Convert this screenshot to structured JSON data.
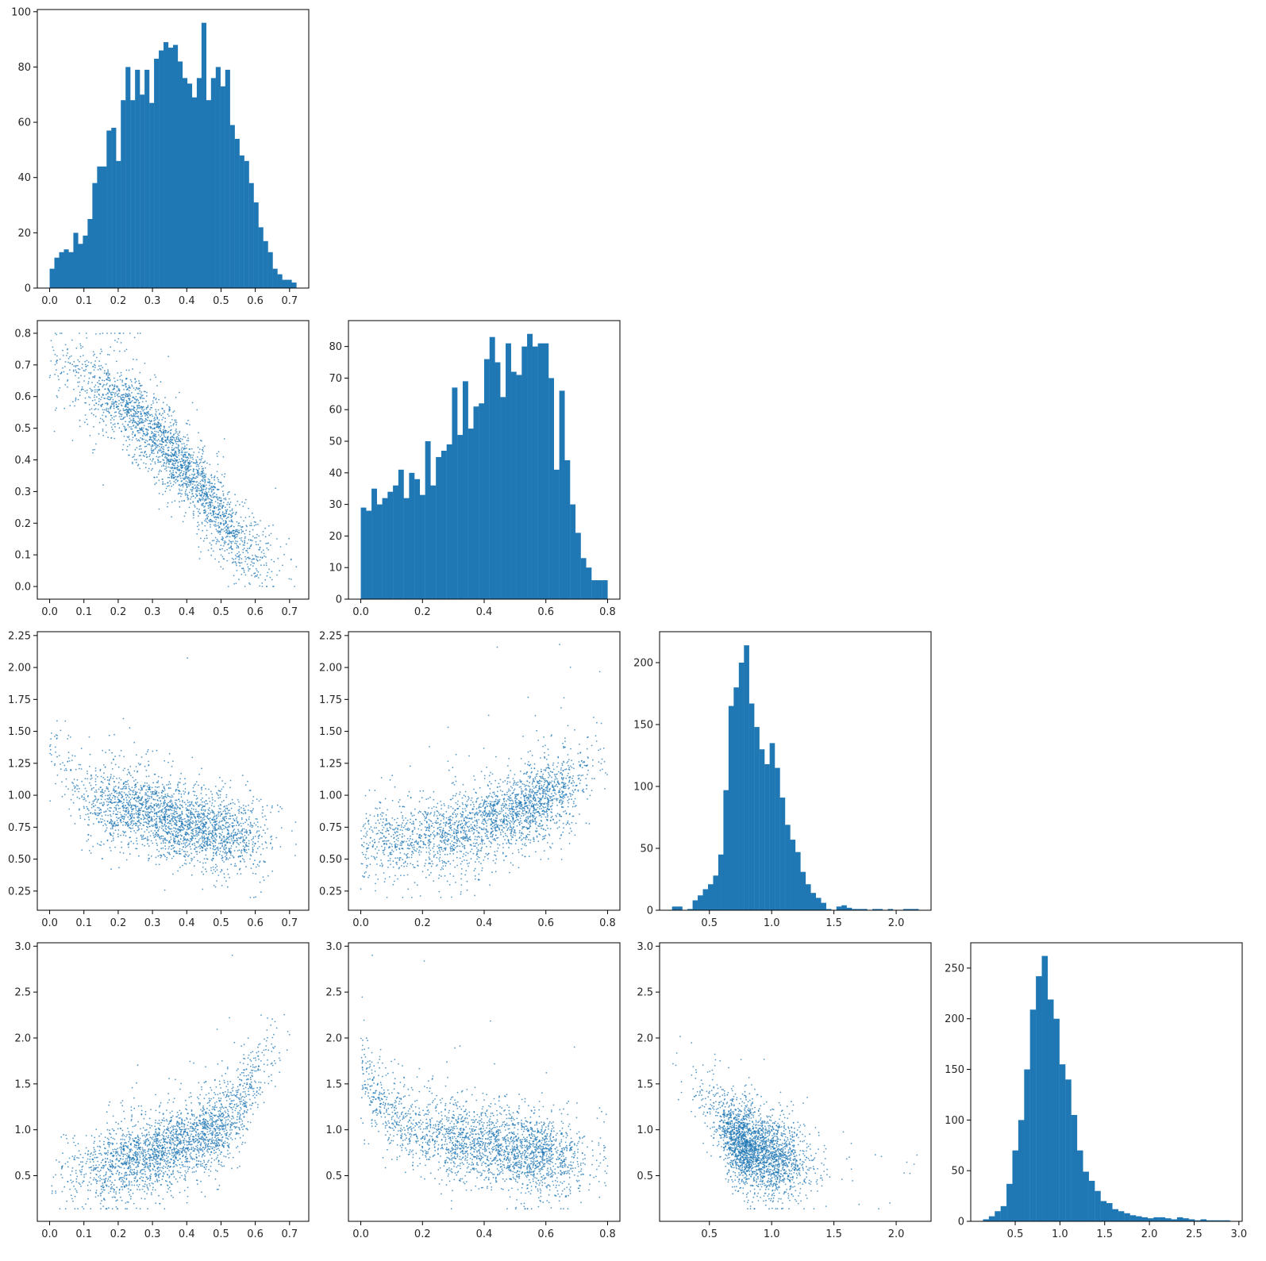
{
  "colors": {
    "bar": "#1f77b4",
    "point": "#1f77b4",
    "axis": "#000000",
    "text": "#262626"
  },
  "figure_layout": "corner-plot-4x4-lower-triangle",
  "chart_data": [
    {
      "id": "hist-0",
      "type": "bar",
      "panel": [
        0,
        0
      ],
      "bin_edges_range": [
        0.0,
        0.72
      ],
      "counts": [
        7,
        11,
        13,
        14,
        13,
        20,
        16,
        19,
        25,
        38,
        44,
        44,
        57,
        58,
        46,
        68,
        80,
        68,
        79,
        70,
        79,
        67,
        83,
        86,
        89,
        87,
        88,
        82,
        76,
        74,
        69,
        76,
        96,
        68,
        76,
        80,
        73,
        79,
        59,
        54,
        48,
        46,
        38,
        31,
        22,
        17,
        13,
        7,
        5,
        3,
        3,
        2
      ],
      "xlim": [
        -0.036,
        0.756
      ],
      "ylim": [
        0,
        100.8
      ],
      "xticks": [
        0.0,
        0.1,
        0.2,
        0.3,
        0.4,
        0.5,
        0.6,
        0.7
      ],
      "xtick_labels": [
        "0.0",
        "0.1",
        "0.2",
        "0.3",
        "0.4",
        "0.5",
        "0.6",
        "0.7"
      ],
      "yticks": [
        0,
        20,
        40,
        60,
        80,
        100
      ],
      "ytick_labels": [
        "0",
        "20",
        "40",
        "60",
        "80",
        "100"
      ]
    },
    {
      "id": "hist-1",
      "type": "bar",
      "panel": [
        1,
        1
      ],
      "bin_edges_range": [
        0.0,
        0.8
      ],
      "counts": [
        29,
        28,
        35,
        30,
        32,
        34,
        36,
        41,
        32,
        40,
        38,
        33,
        50,
        36,
        45,
        47,
        49,
        67,
        52,
        69,
        54,
        61,
        62,
        76,
        83,
        75,
        64,
        81,
        72,
        71,
        80,
        84,
        80,
        81,
        81,
        70,
        41,
        66,
        44,
        30,
        21,
        13,
        10,
        6,
        6,
        6
      ],
      "xlim": [
        -0.04,
        0.84
      ],
      "ylim": [
        0,
        88.2
      ],
      "xticks": [
        0.0,
        0.2,
        0.4,
        0.6,
        0.8
      ],
      "xtick_labels": [
        "0.0",
        "0.2",
        "0.4",
        "0.6",
        "0.8"
      ],
      "yticks": [
        0,
        10,
        20,
        30,
        40,
        50,
        60,
        70,
        80
      ],
      "ytick_labels": [
        "0",
        "10",
        "20",
        "30",
        "40",
        "50",
        "60",
        "70",
        "80"
      ]
    },
    {
      "id": "hist-2",
      "type": "bar",
      "panel": [
        2,
        2
      ],
      "bin_edges_range": [
        0.2,
        2.18
      ],
      "counts": [
        3,
        3,
        0,
        1,
        8,
        12,
        17,
        21,
        28,
        45,
        97,
        165,
        180,
        200,
        214,
        167,
        148,
        130,
        118,
        135,
        115,
        91,
        69,
        57,
        47,
        31,
        21,
        14,
        10,
        6,
        1,
        0,
        3,
        4,
        2,
        1,
        1,
        1,
        0,
        1,
        1,
        0,
        1,
        0,
        0,
        1,
        1,
        1
      ],
      "xlim": [
        0.1,
        2.28
      ],
      "ylim": [
        0,
        225
      ],
      "xticks": [
        0.5,
        1.0,
        1.5,
        2.0
      ],
      "xtick_labels": [
        "0.5",
        "1.0",
        "1.5",
        "2.0"
      ],
      "yticks": [
        0,
        50,
        100,
        150,
        200
      ],
      "ytick_labels": [
        "0",
        "50",
        "100",
        "150",
        "200"
      ]
    },
    {
      "id": "hist-3",
      "type": "bar",
      "panel": [
        3,
        3
      ],
      "bin_edges_range": [
        0.14,
        2.9
      ],
      "counts": [
        2,
        5,
        10,
        15,
        37,
        70,
        100,
        150,
        209,
        242,
        262,
        219,
        200,
        155,
        140,
        105,
        70,
        49,
        40,
        30,
        20,
        18,
        12,
        10,
        8,
        6,
        5,
        4,
        3,
        4,
        4,
        3,
        2,
        4,
        3,
        2,
        1,
        2,
        1,
        1,
        1,
        1
      ],
      "xlim": [
        0.003,
        3.037
      ],
      "ylim": [
        0,
        275
      ],
      "xticks": [
        0.5,
        1.0,
        1.5,
        2.0,
        2.5,
        3.0
      ],
      "xtick_labels": [
        "0.5",
        "1.0",
        "1.5",
        "2.0",
        "2.5",
        "3.0"
      ],
      "yticks": [
        0,
        50,
        100,
        150,
        200,
        250
      ],
      "ytick_labels": [
        "0",
        "50",
        "100",
        "150",
        "200",
        "250"
      ]
    },
    {
      "id": "scatter-1-0",
      "type": "scatter",
      "panel": [
        1,
        0
      ],
      "point_count": 2500,
      "x_range": [
        0.0,
        0.72
      ],
      "y_range": [
        0.0,
        0.8
      ],
      "trend": "negative",
      "relationship_x_to_y": {
        "x": [
          0.05,
          0.15,
          0.25,
          0.35,
          0.45,
          0.55,
          0.65
        ],
        "y_median": [
          0.67,
          0.62,
          0.54,
          0.43,
          0.3,
          0.14,
          0.08
        ]
      },
      "xlim": [
        -0.036,
        0.756
      ],
      "ylim": [
        -0.04,
        0.84
      ],
      "xticks": [
        0.0,
        0.1,
        0.2,
        0.3,
        0.4,
        0.5,
        0.6,
        0.7
      ],
      "xtick_labels": [
        "0.0",
        "0.1",
        "0.2",
        "0.3",
        "0.4",
        "0.5",
        "0.6",
        "0.7"
      ],
      "yticks": [
        0.0,
        0.1,
        0.2,
        0.3,
        0.4,
        0.5,
        0.6,
        0.7,
        0.8
      ],
      "ytick_labels": [
        "0.0",
        "0.1",
        "0.2",
        "0.3",
        "0.4",
        "0.5",
        "0.6",
        "0.7",
        "0.8"
      ]
    },
    {
      "id": "scatter-2-0",
      "type": "scatter",
      "panel": [
        2,
        0
      ],
      "point_count": 2500,
      "x_range": [
        0.0,
        0.72
      ],
      "y_range": [
        0.2,
        2.18
      ],
      "trend": "negative",
      "relationship_x_to_y": {
        "x": [
          0.02,
          0.1,
          0.2,
          0.3,
          0.4,
          0.5,
          0.6,
          0.7
        ],
        "y_median": [
          1.3,
          1.0,
          0.92,
          0.86,
          0.78,
          0.7,
          0.68,
          0.72
        ]
      },
      "xlim": [
        -0.036,
        0.756
      ],
      "ylim": [
        0.1,
        2.28
      ],
      "xticks": [
        0.0,
        0.1,
        0.2,
        0.3,
        0.4,
        0.5,
        0.6,
        0.7
      ],
      "xtick_labels": [
        "0.0",
        "0.1",
        "0.2",
        "0.3",
        "0.4",
        "0.5",
        "0.6",
        "0.7"
      ],
      "yticks": [
        0.25,
        0.5,
        0.75,
        1.0,
        1.25,
        1.5,
        1.75,
        2.0,
        2.25
      ],
      "ytick_labels": [
        "0.25",
        "0.50",
        "0.75",
        "1.00",
        "1.25",
        "1.50",
        "1.75",
        "2.00",
        "2.25"
      ]
    },
    {
      "id": "scatter-2-1",
      "type": "scatter",
      "panel": [
        2,
        1
      ],
      "point_count": 2500,
      "x_range": [
        0.0,
        0.8
      ],
      "y_range": [
        0.2,
        2.18
      ],
      "trend": "positive",
      "relationship_x_to_y": {
        "x": [
          0.0,
          0.1,
          0.2,
          0.3,
          0.4,
          0.5,
          0.6,
          0.7,
          0.78
        ],
        "y_median": [
          0.62,
          0.64,
          0.66,
          0.7,
          0.76,
          0.85,
          0.98,
          1.1,
          1.3
        ]
      },
      "xlim": [
        -0.04,
        0.84
      ],
      "ylim": [
        0.1,
        2.28
      ],
      "xticks": [
        0.0,
        0.2,
        0.4,
        0.6,
        0.8
      ],
      "xtick_labels": [
        "0.0",
        "0.2",
        "0.4",
        "0.6",
        "0.8"
      ],
      "yticks": [
        0.25,
        0.5,
        0.75,
        1.0,
        1.25,
        1.5,
        1.75,
        2.0,
        2.25
      ],
      "ytick_labels": [
        "0.25",
        "0.50",
        "0.75",
        "1.00",
        "1.25",
        "1.50",
        "1.75",
        "2.00",
        "2.25"
      ]
    },
    {
      "id": "scatter-3-0",
      "type": "scatter",
      "panel": [
        3,
        0
      ],
      "point_count": 2500,
      "x_range": [
        0.0,
        0.72
      ],
      "y_range": [
        0.14,
        2.9
      ],
      "trend": "positive",
      "relationship_x_to_y": {
        "x": [
          0.0,
          0.1,
          0.2,
          0.3,
          0.4,
          0.5,
          0.55,
          0.6,
          0.65,
          0.7
        ],
        "y_median": [
          0.45,
          0.55,
          0.65,
          0.75,
          0.88,
          1.05,
          1.25,
          1.55,
          1.8,
          2.0
        ]
      },
      "xlim": [
        -0.036,
        0.756
      ],
      "ylim": [
        0.003,
        3.037
      ],
      "xticks": [
        0.0,
        0.1,
        0.2,
        0.3,
        0.4,
        0.5,
        0.6,
        0.7
      ],
      "xtick_labels": [
        "0.0",
        "0.1",
        "0.2",
        "0.3",
        "0.4",
        "0.5",
        "0.6",
        "0.7"
      ],
      "yticks": [
        0.5,
        1.0,
        1.5,
        2.0,
        2.5,
        3.0
      ],
      "ytick_labels": [
        "0.5",
        "1.0",
        "1.5",
        "2.0",
        "2.5",
        "3.0"
      ]
    },
    {
      "id": "scatter-3-1",
      "type": "scatter",
      "panel": [
        3,
        1
      ],
      "point_count": 2500,
      "x_range": [
        0.0,
        0.8
      ],
      "y_range": [
        0.14,
        2.9
      ],
      "trend": "negative",
      "relationship_x_to_y": {
        "x": [
          0.0,
          0.05,
          0.1,
          0.2,
          0.3,
          0.4,
          0.5,
          0.6,
          0.7,
          0.8
        ],
        "y_median": [
          1.6,
          1.35,
          1.15,
          1.0,
          0.9,
          0.85,
          0.78,
          0.72,
          0.7,
          0.72
        ]
      },
      "xlim": [
        -0.04,
        0.84
      ],
      "ylim": [
        0.003,
        3.037
      ],
      "xticks": [
        0.0,
        0.2,
        0.4,
        0.6,
        0.8
      ],
      "xtick_labels": [
        "0.0",
        "0.2",
        "0.4",
        "0.6",
        "0.8"
      ],
      "yticks": [
        0.5,
        1.0,
        1.5,
        2.0,
        2.5,
        3.0
      ],
      "ytick_labels": [
        "0.5",
        "1.0",
        "1.5",
        "2.0",
        "2.5",
        "3.0"
      ]
    },
    {
      "id": "scatter-3-2",
      "type": "scatter",
      "panel": [
        3,
        2
      ],
      "point_count": 2500,
      "x_range": [
        0.2,
        2.18
      ],
      "y_range": [
        0.14,
        2.9
      ],
      "trend": "negative",
      "relationship_x_to_y": {
        "x": [
          0.3,
          0.5,
          0.6,
          0.7,
          0.8,
          0.9,
          1.0,
          1.1,
          1.3,
          1.6,
          2.0
        ],
        "y_median": [
          1.6,
          1.3,
          1.05,
          0.9,
          0.82,
          0.76,
          0.72,
          0.7,
          0.62,
          0.55,
          0.5
        ]
      },
      "xlim": [
        0.1,
        2.28
      ],
      "ylim": [
        0.003,
        3.037
      ],
      "xticks": [
        0.5,
        1.0,
        1.5,
        2.0
      ],
      "xtick_labels": [
        "0.5",
        "1.0",
        "1.5",
        "2.0"
      ],
      "yticks": [
        0.5,
        1.0,
        1.5,
        2.0,
        2.5,
        3.0
      ],
      "ytick_labels": [
        "0.5",
        "1.0",
        "1.5",
        "2.0",
        "2.5",
        "3.0"
      ]
    }
  ]
}
